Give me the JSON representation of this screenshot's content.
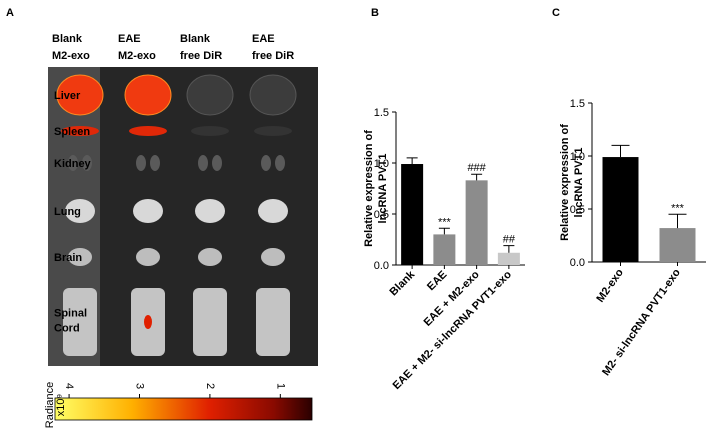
{
  "panel_labels": [
    "A",
    "B",
    "C"
  ],
  "imaging": {
    "columns": [
      [
        "Blank",
        "M2-exo"
      ],
      [
        "EAE",
        "M2-exo"
      ],
      [
        "Blank",
        "free DiR"
      ],
      [
        "EAE",
        "free DiR"
      ]
    ],
    "rows": [
      [
        "Liver"
      ],
      [
        "Spleen"
      ],
      [
        "Kidney"
      ],
      [
        "Lung"
      ],
      [
        "Brain"
      ],
      [
        "Spinal",
        "Cord"
      ]
    ],
    "colorbar": {
      "label": "Radiance",
      "unit": "x10⁹",
      "range": [
        4.2,
        0.55
      ],
      "ticks": [
        4,
        3,
        2,
        1
      ]
    }
  },
  "chart_data": [
    {
      "type": "bar",
      "y_label": [
        "Relative expression of",
        "lncRNA PVT1"
      ],
      "categories": [
        "Blank",
        "EAE",
        "EAE + M2-exo",
        "EAE + M2- si-lncRNA PVT1-exo"
      ],
      "values": [
        0.99,
        0.3,
        0.83,
        0.12
      ],
      "errors": [
        0.06,
        0.06,
        0.06,
        0.07
      ],
      "colors": [
        "#000000",
        "#8c8c8c",
        "#8c8c8c",
        "#c8c8c8"
      ],
      "annotations": [
        {
          "text": "***",
          "category": "EAE"
        },
        {
          "text": "###",
          "category": "EAE + M2-exo"
        },
        {
          "text": "##",
          "category": "EAE + M2- si-lncRNA PVT1-exo"
        }
      ],
      "ylim": [
        0,
        1.5
      ],
      "yticks": [
        {
          "value": 0,
          "label": "0.0"
        },
        0.5,
        {
          "value": 1,
          "label": "1.0"
        },
        1.5
      ]
    },
    {
      "type": "bar",
      "y_label": [
        "Relative expression of",
        "lncRNA PVT1"
      ],
      "categories": [
        "M2-exo",
        "M2- si-lncRNA PVT1-exo"
      ],
      "values": [
        0.99,
        0.32
      ],
      "errors": [
        0.11,
        0.13
      ],
      "colors": [
        "#000000",
        "#8c8c8c"
      ],
      "annotations": [
        {
          "text": "***",
          "category": "M2- si-lncRNA PVT1-exo"
        }
      ],
      "ylim": [
        0,
        1.5
      ],
      "yticks": [
        {
          "value": 0,
          "label": "0.0"
        },
        0.5,
        {
          "value": 1,
          "label": "1.0"
        },
        1.5
      ]
    }
  ]
}
